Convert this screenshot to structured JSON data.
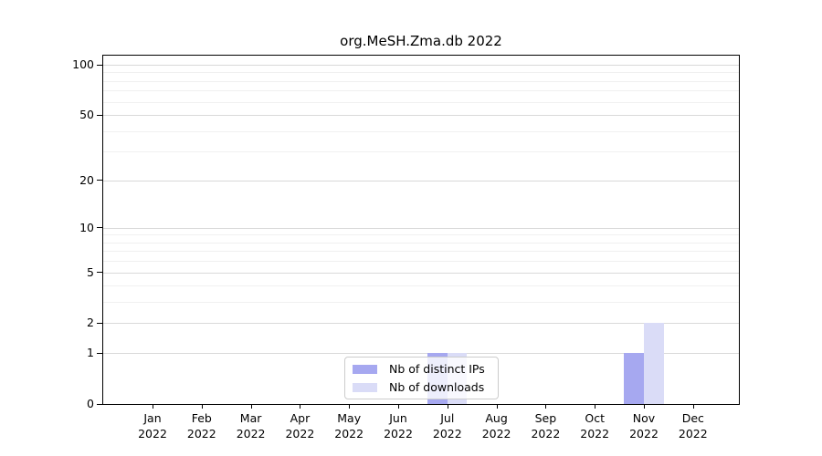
{
  "title": "org.MeSH.Zma.db 2022",
  "chart_data": {
    "type": "bar",
    "title": "org.MeSH.Zma.db 2022",
    "x_categories": [
      "Jan",
      "Feb",
      "Mar",
      "Apr",
      "May",
      "Jun",
      "Jul",
      "Aug",
      "Sep",
      "Oct",
      "Nov",
      "Dec"
    ],
    "x_year": "2022",
    "series": [
      {
        "name": "Nb of distinct IPs",
        "color": "#a6a8f0",
        "values": [
          0,
          0,
          0,
          0,
          0,
          0,
          1,
          0,
          0,
          0,
          1,
          0
        ]
      },
      {
        "name": "Nb of downloads",
        "color": "#dadcf7",
        "values": [
          0,
          0,
          0,
          0,
          0,
          0,
          1,
          0,
          0,
          0,
          2,
          0
        ]
      }
    ],
    "y_scale": "log1p",
    "y_ticks": [
      0,
      1,
      2,
      5,
      10,
      20,
      50,
      100
    ],
    "y_minor_gridlines": [
      3,
      4,
      6,
      7,
      8,
      9,
      30,
      40,
      60,
      70,
      80,
      90
    ],
    "ylim": [
      0,
      115
    ],
    "grid": true,
    "legend_position": "lower center",
    "colors": {
      "major_grid": "#d9d9d9",
      "minor_grid": "#f0f0f0",
      "spine": "#000000",
      "text": "#000000",
      "legend_border": "#cccccc"
    }
  }
}
